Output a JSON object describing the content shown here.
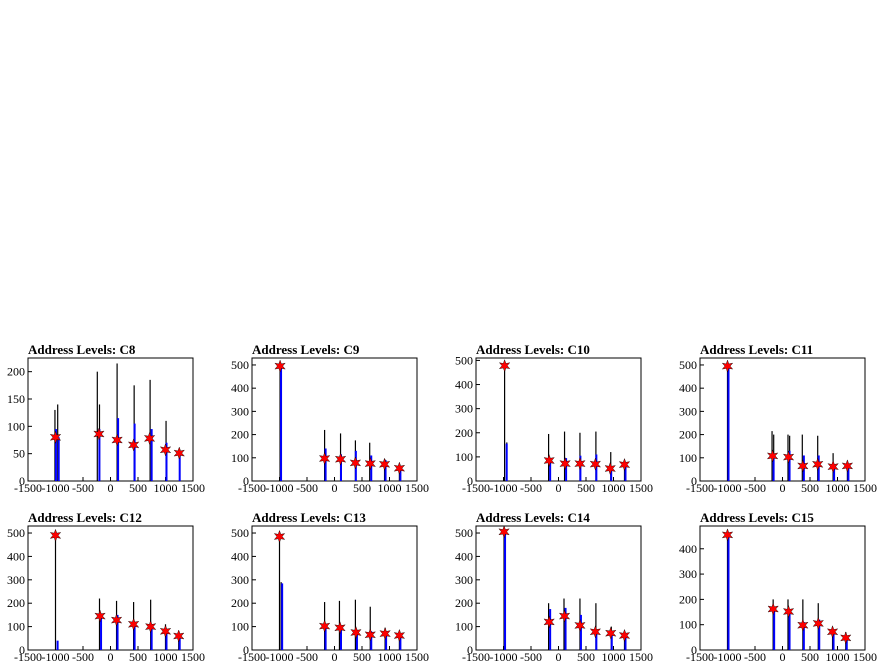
{
  "colors": {
    "black_hist": "#000000",
    "blue_hist": "#0000ff",
    "marker": "#ff0000",
    "frame": "#000000"
  },
  "chart_data": [
    {
      "type": "histogram",
      "title": "Address Levels: C8",
      "xlabel": "",
      "ylabel": "",
      "xlim": [
        -1500,
        1500
      ],
      "ylim": [
        0,
        225
      ],
      "xticks": [
        -1500,
        -1000,
        -500,
        0,
        500,
        1000,
        1500
      ],
      "yticks": [
        0,
        50,
        100,
        150,
        200
      ],
      "black_peaks": [
        [
          -1010,
          130
        ],
        [
          -960,
          140
        ],
        [
          -240,
          200
        ],
        [
          -200,
          140
        ],
        [
          120,
          215
        ],
        [
          430,
          175
        ],
        [
          720,
          185
        ],
        [
          1010,
          110
        ]
      ],
      "blue_peaks": [
        [
          -1010,
          95
        ],
        [
          -960,
          80
        ],
        [
          -220,
          95
        ],
        [
          120,
          115
        ],
        [
          420,
          105
        ],
        [
          730,
          95
        ],
        [
          1000,
          70
        ],
        [
          1240,
          55
        ]
      ],
      "markers": {
        "x": [
          -1000,
          -210,
          120,
          420,
          710,
          1000,
          1250
        ],
        "y": [
          80,
          86,
          75,
          66,
          78,
          57,
          51
        ]
      }
    },
    {
      "type": "histogram",
      "title": "Address Levels: C9",
      "xlabel": "",
      "ylabel": "",
      "xlim": [
        -1500,
        1500
      ],
      "ylim": [
        0,
        530
      ],
      "xticks": [
        -1500,
        -1000,
        -500,
        0,
        500,
        1000,
        1500
      ],
      "yticks": [
        0,
        100,
        200,
        300,
        400,
        500
      ],
      "black_peaks": [
        [
          -990,
          500
        ],
        [
          -180,
          220
        ],
        [
          110,
          205
        ],
        [
          380,
          175
        ],
        [
          640,
          165
        ],
        [
          910,
          95
        ],
        [
          1180,
          70
        ]
      ],
      "blue_peaks": [
        [
          -990,
          495
        ],
        [
          -180,
          140
        ],
        [
          100,
          115
        ],
        [
          370,
          130
        ],
        [
          650,
          110
        ],
        [
          910,
          90
        ],
        [
          1180,
          60
        ]
      ],
      "markers": {
        "x": [
          -990,
          -180,
          110,
          380,
          650,
          910,
          1180
        ],
        "y": [
          495,
          97,
          94,
          78,
          75,
          72,
          55
        ]
      }
    },
    {
      "type": "histogram",
      "title": "Address Levels: C10",
      "xlabel": "",
      "ylabel": "",
      "xlim": [
        -1500,
        1500
      ],
      "ylim": [
        0,
        510
      ],
      "xticks": [
        -1500,
        -1000,
        -500,
        0,
        500,
        1000,
        1500
      ],
      "yticks": [
        0,
        100,
        200,
        300,
        400,
        500
      ],
      "black_peaks": [
        [
          -980,
          480
        ],
        [
          -940,
          160
        ],
        [
          -180,
          195
        ],
        [
          110,
          205
        ],
        [
          390,
          200
        ],
        [
          680,
          205
        ],
        [
          950,
          120
        ],
        [
          1200,
          75
        ]
      ],
      "blue_peaks": [
        [
          -960,
          155
        ],
        [
          -170,
          95
        ],
        [
          120,
          95
        ],
        [
          380,
          105
        ],
        [
          670,
          110
        ],
        [
          940,
          60
        ],
        [
          1200,
          60
        ]
      ],
      "markers": {
        "x": [
          -980,
          -170,
          120,
          390,
          670,
          940,
          1200
        ],
        "y": [
          478,
          85,
          72,
          72,
          70,
          52,
          68
        ]
      }
    },
    {
      "type": "histogram",
      "title": "Address Levels: C11",
      "xlabel": "",
      "ylabel": "",
      "xlim": [
        -1500,
        1500
      ],
      "ylim": [
        0,
        530
      ],
      "xticks": [
        -1500,
        -1000,
        -500,
        0,
        500,
        1000,
        1500
      ],
      "yticks": [
        0,
        100,
        200,
        300,
        400,
        500
      ],
      "black_peaks": [
        [
          -1000,
          500
        ],
        [
          -190,
          215
        ],
        [
          -160,
          200
        ],
        [
          100,
          200
        ],
        [
          130,
          195
        ],
        [
          360,
          200
        ],
        [
          640,
          195
        ],
        [
          920,
          120
        ],
        [
          1180,
          80
        ]
      ],
      "blue_peaks": [
        [
          -1000,
          490
        ],
        [
          -180,
          110
        ],
        [
          110,
          130
        ],
        [
          370,
          110
        ],
        [
          640,
          110
        ],
        [
          920,
          70
        ],
        [
          1180,
          65
        ]
      ],
      "markers": {
        "x": [
          -1000,
          -180,
          110,
          370,
          640,
          920,
          1180
        ],
        "y": [
          495,
          108,
          103,
          65,
          72,
          62,
          65
        ]
      }
    },
    {
      "type": "histogram",
      "title": "Address Levels: C12",
      "xlabel": "",
      "ylabel": "",
      "xlim": [
        -1500,
        1500
      ],
      "ylim": [
        0,
        530
      ],
      "xticks": [
        -1500,
        -1000,
        -500,
        0,
        500,
        1000,
        1500
      ],
      "yticks": [
        0,
        100,
        200,
        300,
        400,
        500
      ],
      "black_peaks": [
        [
          -1000,
          490
        ],
        [
          -200,
          220
        ],
        [
          110,
          210
        ],
        [
          420,
          205
        ],
        [
          730,
          215
        ],
        [
          1000,
          110
        ],
        [
          1240,
          80
        ]
      ],
      "blue_peaks": [
        [
          -980,
          40
        ],
        [
          -190,
          155
        ],
        [
          110,
          150
        ],
        [
          420,
          120
        ],
        [
          730,
          110
        ],
        [
          1000,
          80
        ],
        [
          1240,
          50
        ]
      ],
      "markers": {
        "x": [
          -1000,
          -190,
          110,
          420,
          730,
          1000,
          1240
        ],
        "y": [
          490,
          145,
          128,
          110,
          100,
          80,
          60
        ]
      }
    },
    {
      "type": "histogram",
      "title": "Address Levels: C13",
      "xlabel": "",
      "ylabel": "",
      "xlim": [
        -1500,
        1500
      ],
      "ylim": [
        0,
        530
      ],
      "xticks": [
        -1500,
        -1000,
        -500,
        0,
        500,
        1000,
        1500
      ],
      "yticks": [
        0,
        100,
        200,
        300,
        400,
        500
      ],
      "black_peaks": [
        [
          -1000,
          490
        ],
        [
          -970,
          290
        ],
        [
          -180,
          205
        ],
        [
          90,
          210
        ],
        [
          380,
          215
        ],
        [
          650,
          185
        ],
        [
          920,
          95
        ],
        [
          1180,
          70
        ]
      ],
      "blue_peaks": [
        [
          -970,
          285
        ],
        [
          -180,
          110
        ],
        [
          100,
          85
        ],
        [
          390,
          85
        ],
        [
          650,
          80
        ],
        [
          920,
          75
        ],
        [
          1180,
          55
        ]
      ],
      "markers": {
        "x": [
          -1000,
          -180,
          100,
          390,
          650,
          920,
          1180
        ],
        "y": [
          485,
          102,
          95,
          75,
          65,
          70,
          62
        ]
      }
    },
    {
      "type": "histogram",
      "title": "Address Levels: C14",
      "xlabel": "",
      "ylabel": "",
      "xlim": [
        -1500,
        1500
      ],
      "ylim": [
        0,
        530
      ],
      "xticks": [
        -1500,
        -1000,
        -500,
        0,
        500,
        1000,
        1500
      ],
      "yticks": [
        0,
        100,
        200,
        300,
        400,
        500
      ],
      "black_peaks": [
        [
          -990,
          510
        ],
        [
          -180,
          200
        ],
        [
          100,
          220
        ],
        [
          390,
          220
        ],
        [
          680,
          200
        ],
        [
          960,
          100
        ],
        [
          1200,
          75
        ]
      ],
      "blue_peaks": [
        [
          -990,
          500
        ],
        [
          -170,
          175
        ],
        [
          110,
          180
        ],
        [
          390,
          150
        ],
        [
          670,
          80
        ],
        [
          950,
          80
        ],
        [
          1200,
          55
        ]
      ],
      "markers": {
        "x": [
          -990,
          -170,
          110,
          390,
          670,
          950,
          1200
        ],
        "y": [
          505,
          120,
          145,
          105,
          78,
          72,
          62
        ]
      }
    },
    {
      "type": "histogram",
      "title": "Address Levels: C15",
      "xlabel": "",
      "ylabel": "",
      "xlim": [
        -1500,
        1500
      ],
      "ylim": [
        0,
        490
      ],
      "xticks": [
        -1500,
        -1000,
        -500,
        0,
        500,
        1000,
        1500
      ],
      "yticks": [
        0,
        100,
        200,
        300,
        400
      ],
      "black_peaks": [
        [
          -1000,
          460
        ],
        [
          -170,
          200
        ],
        [
          100,
          200
        ],
        [
          370,
          200
        ],
        [
          650,
          185
        ],
        [
          910,
          90
        ],
        [
          1150,
          70
        ]
      ],
      "blue_peaks": [
        [
          -1000,
          455
        ],
        [
          -170,
          165
        ],
        [
          110,
          160
        ],
        [
          370,
          110
        ],
        [
          650,
          120
        ],
        [
          910,
          80
        ],
        [
          1150,
          50
        ]
      ],
      "markers": {
        "x": [
          -1000,
          -170,
          110,
          370,
          650,
          910,
          1150
        ],
        "y": [
          455,
          162,
          152,
          98,
          105,
          72,
          48
        ]
      }
    }
  ]
}
